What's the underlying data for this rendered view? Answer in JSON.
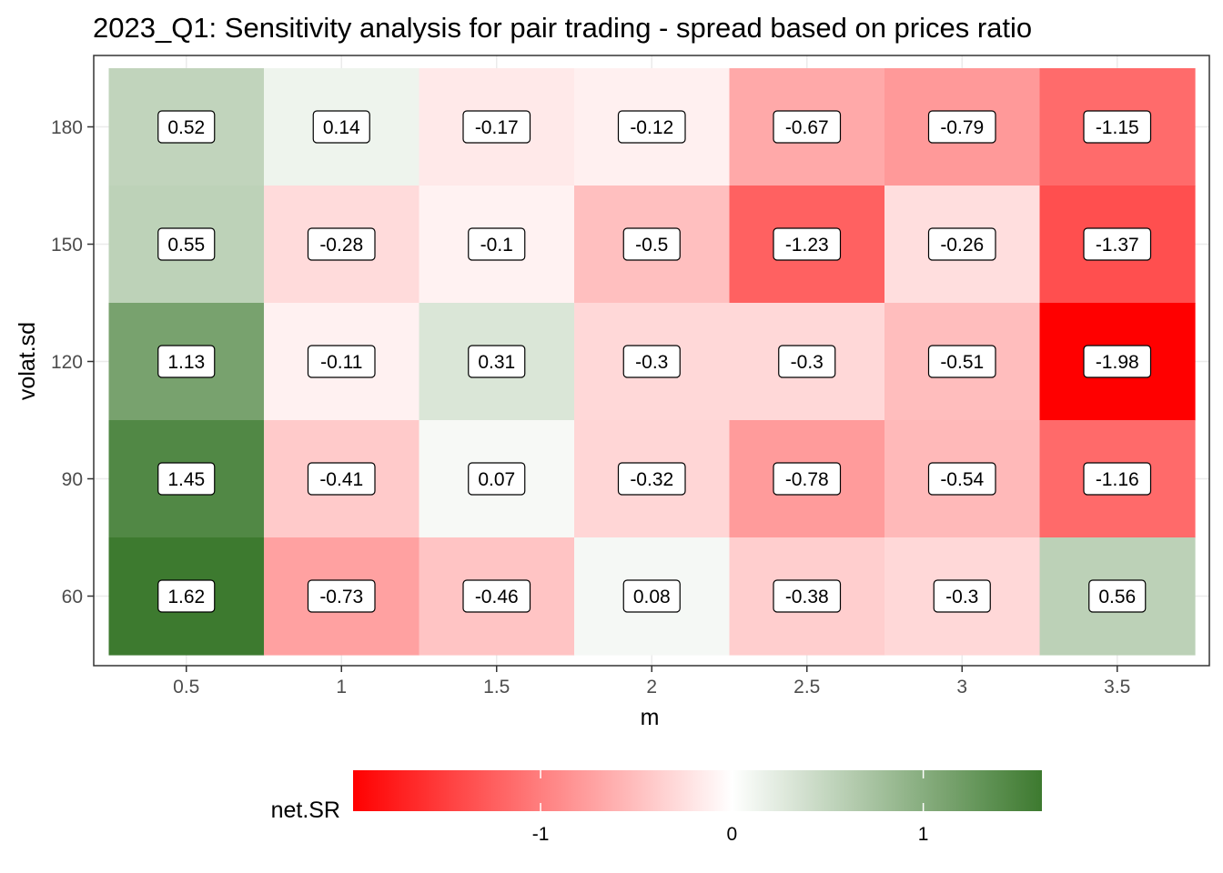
{
  "chart_data": {
    "type": "heatmap",
    "title": "2023_Q1: Sensitivity analysis for pair trading - spread based on prices ratio",
    "xlabel": "m",
    "ylabel": "volat.sd",
    "x": [
      "0.5",
      "1",
      "1.5",
      "2",
      "2.5",
      "3",
      "3.5"
    ],
    "y": [
      "180",
      "150",
      "120",
      "90",
      "60"
    ],
    "values": [
      [
        0.52,
        0.14,
        -0.17,
        -0.12,
        -0.67,
        -0.79,
        -1.15
      ],
      [
        0.55,
        -0.28,
        -0.1,
        -0.5,
        -1.23,
        -0.26,
        -1.37
      ],
      [
        1.13,
        -0.11,
        0.31,
        -0.3,
        -0.3,
        -0.51,
        -1.98
      ],
      [
        1.45,
        -0.41,
        0.07,
        -0.32,
        -0.78,
        -0.54,
        -1.16
      ],
      [
        1.62,
        -0.73,
        -0.46,
        0.08,
        -0.38,
        -0.3,
        0.56
      ]
    ],
    "colorbar": {
      "title": "net.SR",
      "low_color": "#ff0000",
      "mid_color": "#ffffff",
      "high_color": "#3d7a2f",
      "midpoint": 0,
      "range": [
        -1.98,
        1.62
      ],
      "ticks": [
        -1,
        0,
        1
      ],
      "tick_labels": [
        "-1",
        "0",
        "1"
      ],
      "position": "bottom"
    },
    "grid": true
  }
}
